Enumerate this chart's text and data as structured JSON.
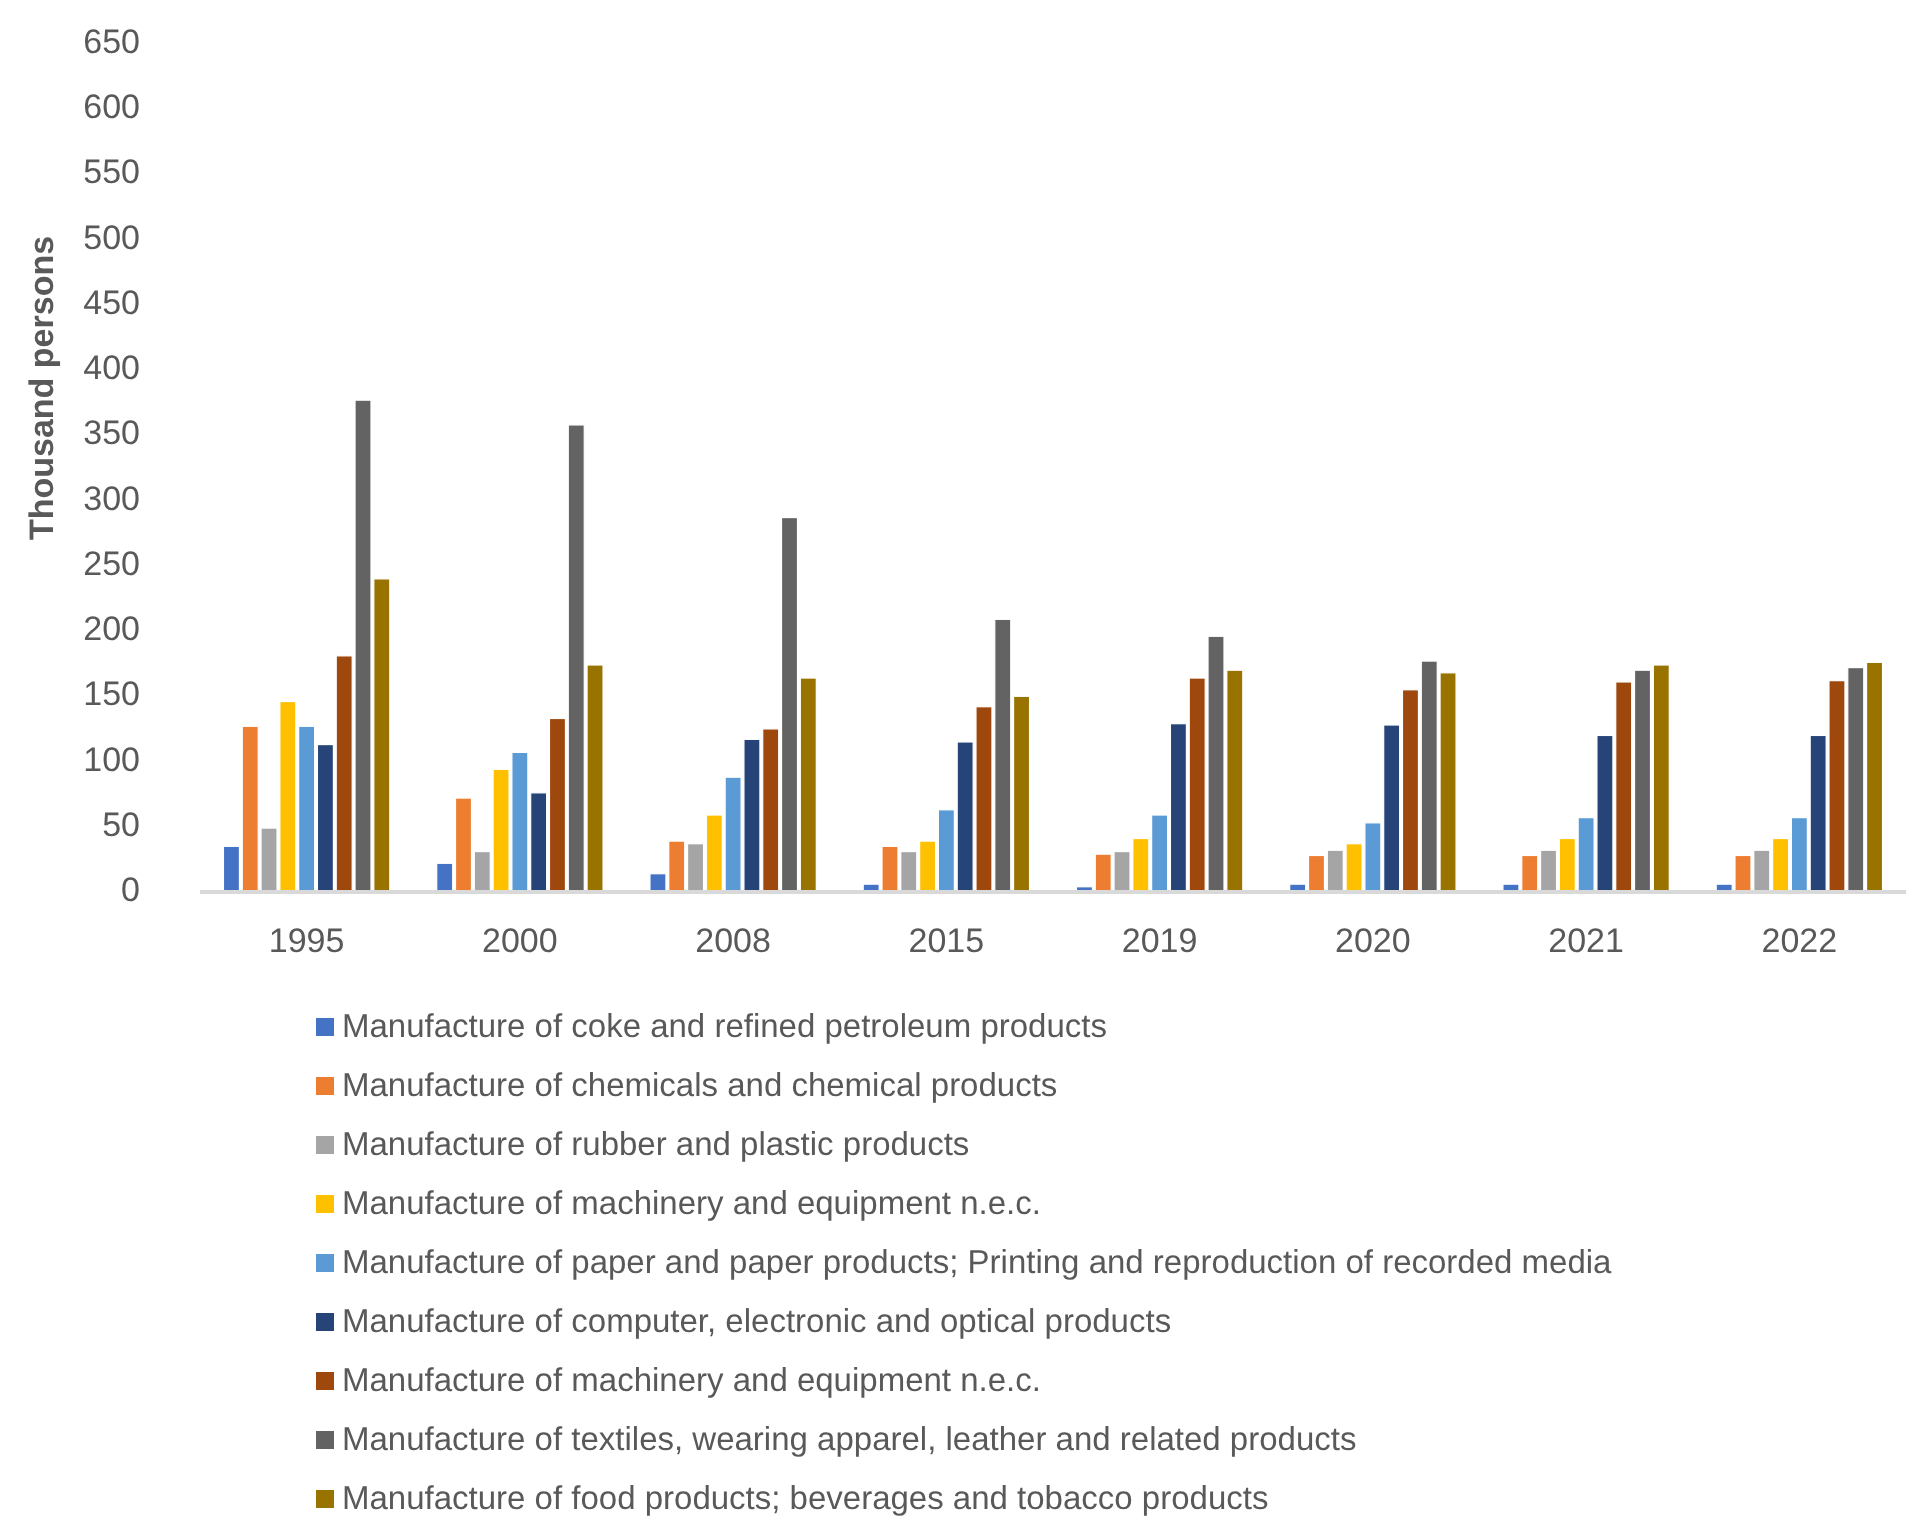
{
  "chart_data": {
    "type": "bar",
    "ylabel": "Thousand persons",
    "categories": [
      "1995",
      "2000",
      "2008",
      "2015",
      "2019",
      "2020",
      "2021",
      "2022"
    ],
    "ylim": [
      0,
      650
    ],
    "yticks": [
      0,
      50,
      100,
      150,
      200,
      250,
      300,
      350,
      400,
      450,
      500,
      550,
      600,
      650
    ],
    "grid": false,
    "legend": "bottom",
    "series": [
      {
        "name": "Manufacture of coke and refined petroleum products",
        "color": "#4472c4",
        "values": [
          35,
          22,
          14,
          6,
          4,
          6,
          6,
          6
        ]
      },
      {
        "name": "Manufacture of chemicals and chemical products",
        "color": "#ed7d31",
        "values": [
          127,
          72,
          39,
          35,
          29,
          28,
          28,
          28
        ]
      },
      {
        "name": "Manufacture of rubber and plastic products",
        "color": "#a5a5a5",
        "values": [
          49,
          31,
          37,
          31,
          31,
          32,
          32,
          32
        ]
      },
      {
        "name": "Manufacture of machinery and equipment n.e.c.",
        "color": "#ffc000",
        "values": [
          146,
          94,
          59,
          39,
          41,
          37,
          41,
          41
        ]
      },
      {
        "name": "Manufacture of paper and paper products; Printing and reproduction of recorded media",
        "color": "#5b9bd5",
        "values": [
          127,
          107,
          88,
          63,
          59,
          53,
          57,
          57
        ]
      },
      {
        "name": "Manufacture of computer, electronic and optical products",
        "color": "#264478",
        "values": [
          113,
          76,
          117,
          115,
          129,
          128,
          120,
          120
        ]
      },
      {
        "name": "Manufacture of machinery and equipment n.e.c.",
        "color": "#9e480e",
        "values": [
          181,
          133,
          125,
          142,
          164,
          155,
          161,
          162
        ]
      },
      {
        "name": "Manufacture of textiles, wearing apparel, leather and related products",
        "color": "#636363",
        "values": [
          377,
          358,
          287,
          209,
          196,
          177,
          170,
          172
        ]
      },
      {
        "name": "Manufacture of food products; beverages and tobacco products",
        "color": "#997300",
        "values": [
          240,
          174,
          164,
          150,
          170,
          168,
          174,
          176
        ]
      }
    ]
  }
}
